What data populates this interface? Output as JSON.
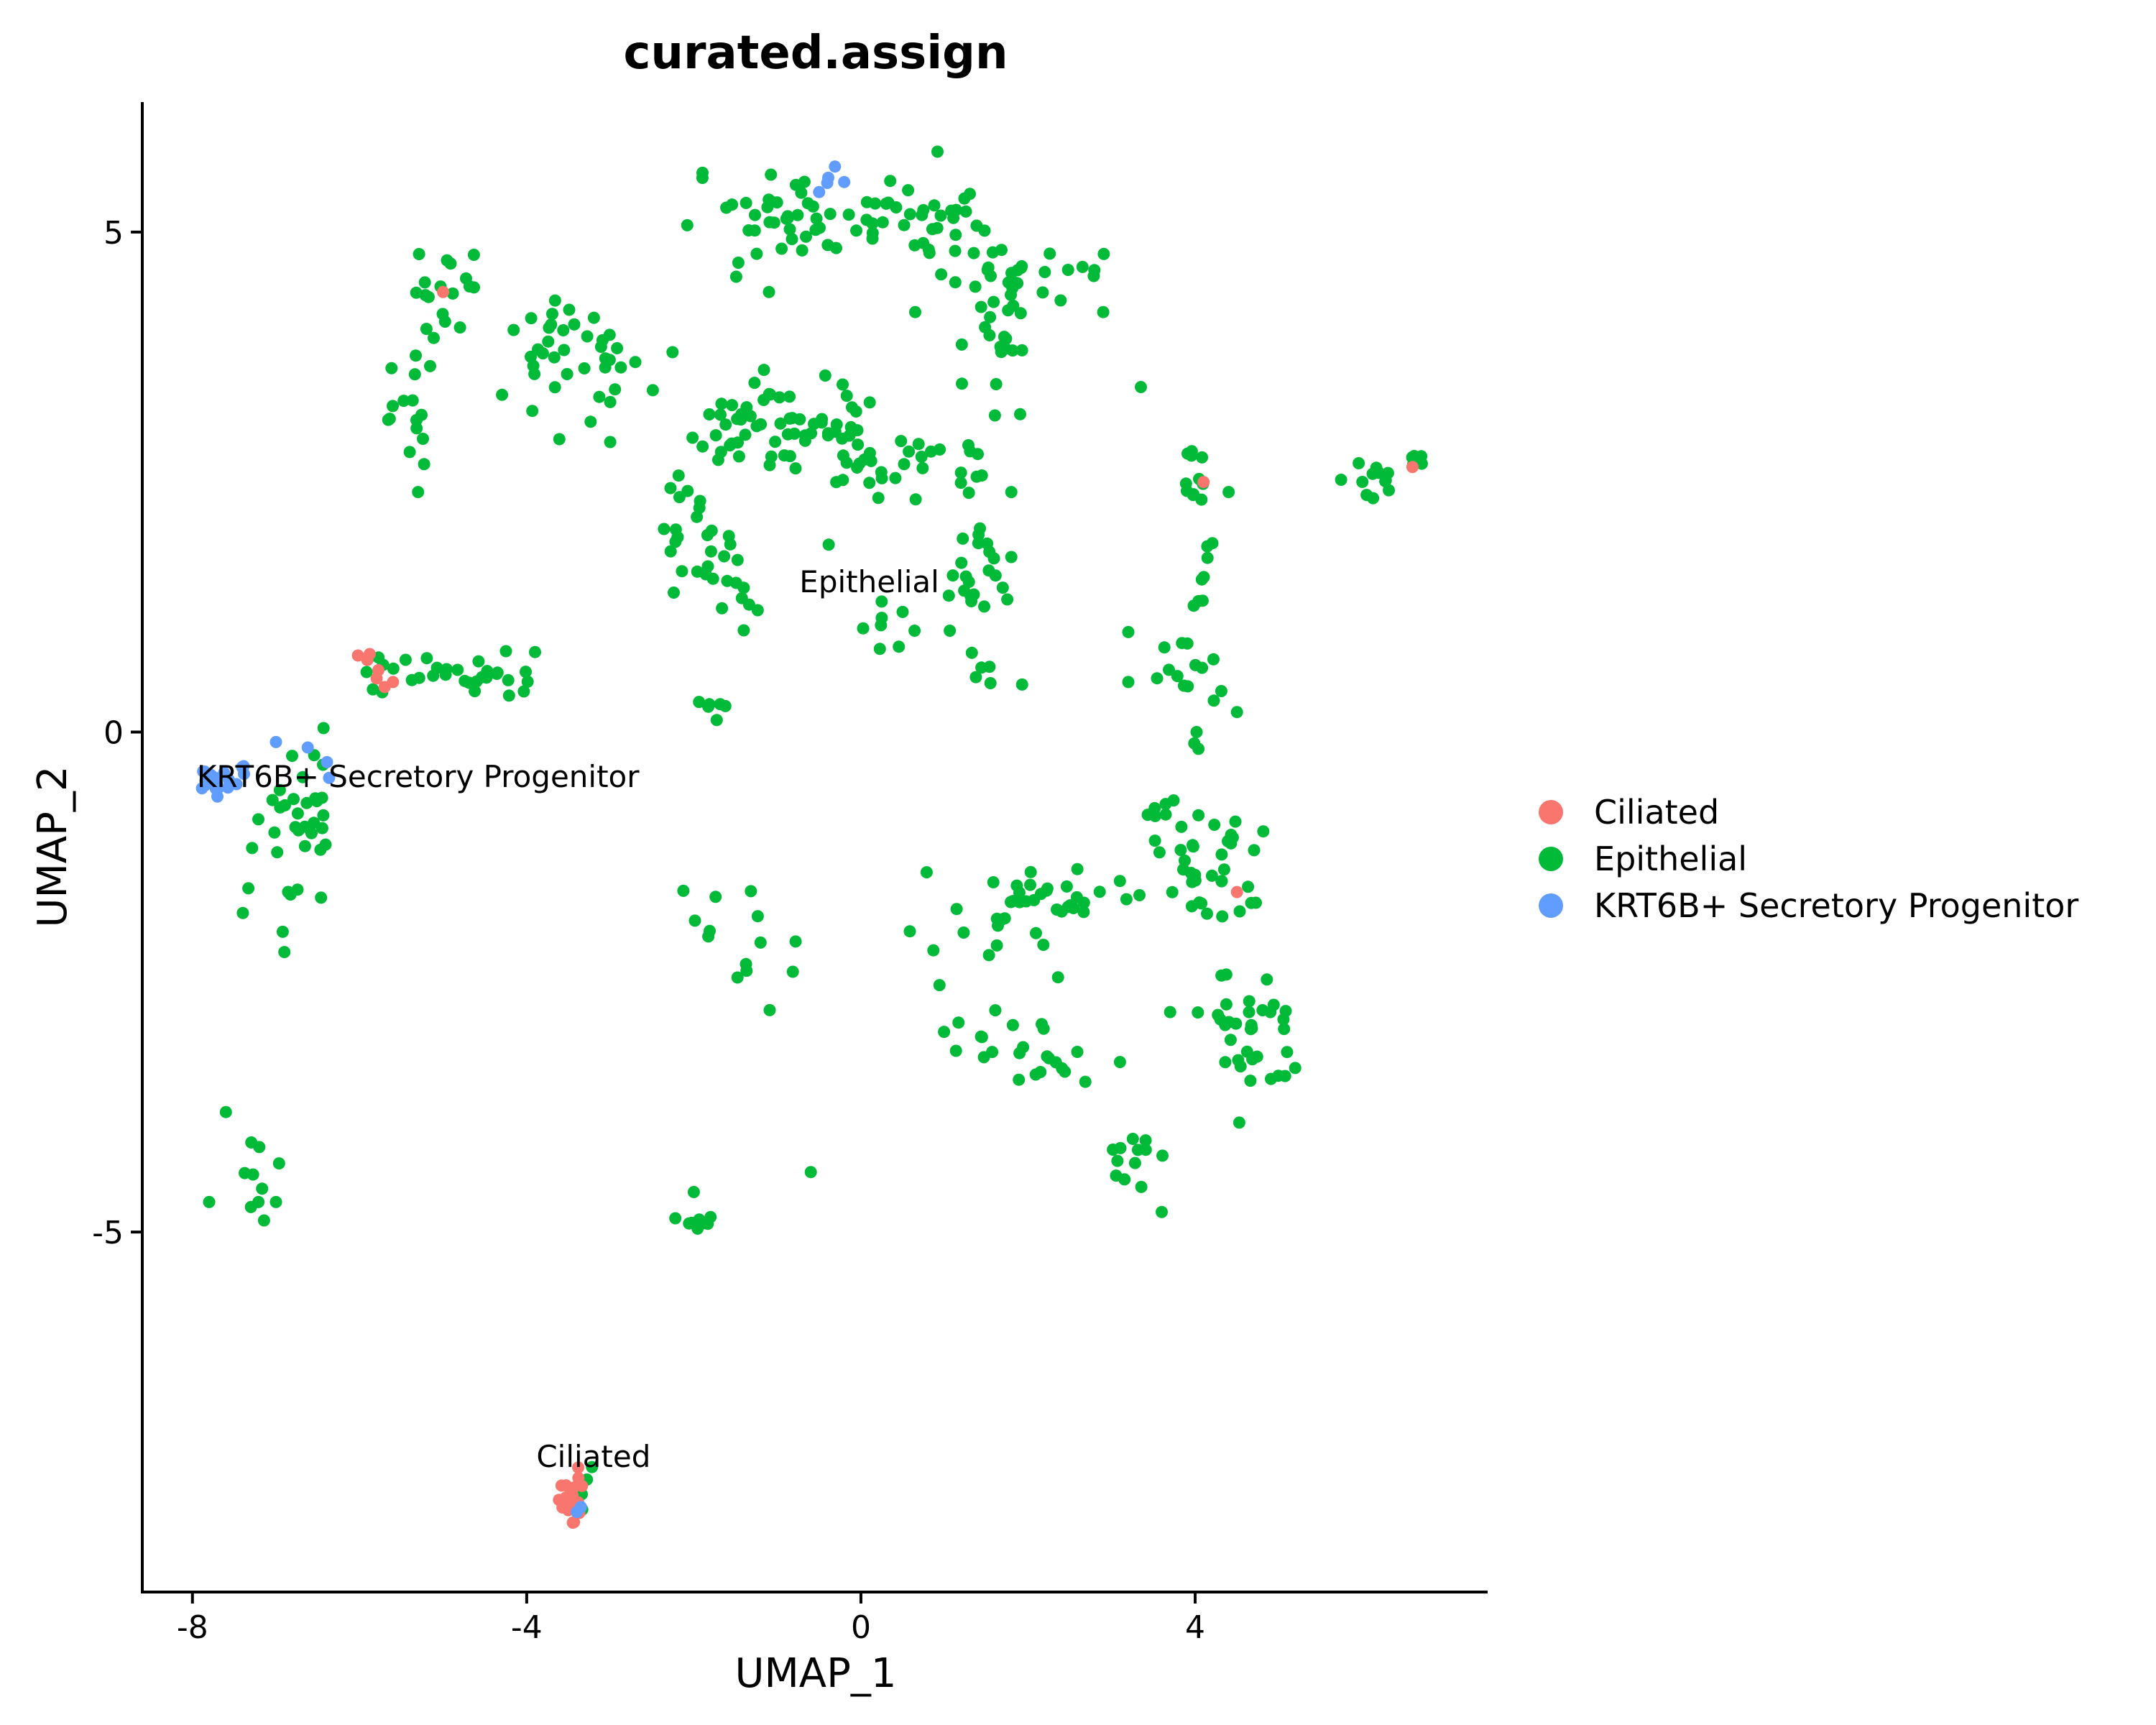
{
  "chart_data": {
    "type": "scatter",
    "title": "curated.assign",
    "xlabel": "UMAP_1",
    "ylabel": "UMAP_2",
    "xlim": [
      -8.6,
      7.5
    ],
    "ylim": [
      -8.6,
      6.3
    ],
    "x_ticks": [
      {
        "value": -8,
        "label": "-8"
      },
      {
        "value": -4,
        "label": "-4"
      },
      {
        "value": 0,
        "label": "0"
      },
      {
        "value": 4,
        "label": "4"
      }
    ],
    "y_ticks": [
      {
        "value": 5,
        "label": "5"
      },
      {
        "value": 0,
        "label": "0"
      },
      {
        "value": -5,
        "label": "-5"
      }
    ],
    "grid": false,
    "legend_position": "right",
    "series": [
      {
        "name": "Ciliated",
        "color": "#F8766D"
      },
      {
        "name": "Epithelial",
        "color": "#00BA38"
      },
      {
        "name": "KRT6B+ Secretory Progenitor",
        "color": "#619CFF"
      }
    ],
    "cluster_labels": [
      {
        "text": "Epithelial",
        "x": 0.1,
        "y": 1.5
      },
      {
        "text": "KRT6B+ Secretory Progenitor",
        "x": -5.3,
        "y": -0.45
      },
      {
        "text": "Ciliated",
        "x": -3.2,
        "y": -7.25
      }
    ],
    "groups": [
      {
        "series": 1,
        "cx": -3.4,
        "cy": 3.8,
        "sx": 0.5,
        "sy": 0.35,
        "n": 38
      },
      {
        "series": 1,
        "cx": -5.1,
        "cy": 4.3,
        "sx": 0.3,
        "sy": 0.35,
        "n": 18
      },
      {
        "series": 1,
        "cx": -5.4,
        "cy": 3.2,
        "sx": 0.2,
        "sy": 0.3,
        "n": 14
      },
      {
        "series": 1,
        "cx": -4.6,
        "cy": 0.55,
        "sx": 0.5,
        "sy": 0.15,
        "n": 26
      },
      {
        "series": 1,
        "cx": -5.8,
        "cy": 0.6,
        "sx": 0.15,
        "sy": 0.2,
        "n": 6
      },
      {
        "series": 1,
        "cx": -6.6,
        "cy": -0.9,
        "sx": 0.35,
        "sy": 0.45,
        "n": 28
      },
      {
        "series": 1,
        "cx": -6.9,
        "cy": -1.6,
        "sx": 0.3,
        "sy": 0.3,
        "n": 8
      },
      {
        "series": 1,
        "cx": -7.2,
        "cy": -4.5,
        "sx": 0.3,
        "sy": 0.3,
        "n": 7
      },
      {
        "series": 1,
        "cx": -1.0,
        "cy": 5.2,
        "sx": 0.6,
        "sy": 0.3,
        "n": 38
      },
      {
        "series": 1,
        "cx": 0.6,
        "cy": 5.1,
        "sx": 0.6,
        "sy": 0.25,
        "n": 38
      },
      {
        "series": 1,
        "cx": 1.8,
        "cy": 4.2,
        "sx": 0.35,
        "sy": 0.5,
        "n": 40
      },
      {
        "series": 1,
        "cx": 2.6,
        "cy": 4.7,
        "sx": 0.2,
        "sy": 0.15,
        "n": 6
      },
      {
        "series": 1,
        "cx": -0.9,
        "cy": 3.1,
        "sx": 0.7,
        "sy": 0.3,
        "n": 55
      },
      {
        "series": 1,
        "cx": 0.3,
        "cy": 2.6,
        "sx": 0.8,
        "sy": 0.4,
        "n": 40
      },
      {
        "series": 1,
        "cx": -2.0,
        "cy": 1.9,
        "sx": 0.25,
        "sy": 0.4,
        "n": 22
      },
      {
        "series": 1,
        "cx": -1.5,
        "cy": 1.3,
        "sx": 0.5,
        "sy": 0.3,
        "n": 12
      },
      {
        "series": 1,
        "cx": 1.5,
        "cy": 1.7,
        "sx": 0.3,
        "sy": 0.3,
        "n": 18
      },
      {
        "series": 1,
        "cx": 0.6,
        "cy": 1.2,
        "sx": 0.4,
        "sy": 0.3,
        "n": 12
      },
      {
        "series": 1,
        "cx": 1.4,
        "cy": 0.7,
        "sx": 0.3,
        "sy": 0.2,
        "n": 6
      },
      {
        "series": 1,
        "cx": -1.8,
        "cy": 0.3,
        "sx": 0.1,
        "sy": 0.15,
        "n": 6
      },
      {
        "series": 1,
        "cx": 4.0,
        "cy": 2.5,
        "sx": 0.1,
        "sy": 0.2,
        "n": 12
      },
      {
        "series": 1,
        "cx": 4.1,
        "cy": 1.5,
        "sx": 0.1,
        "sy": 0.4,
        "n": 8
      },
      {
        "series": 1,
        "cx": 4.0,
        "cy": 0.5,
        "sx": 0.3,
        "sy": 0.35,
        "n": 16
      },
      {
        "series": 1,
        "cx": 6.1,
        "cy": 2.5,
        "sx": 0.25,
        "sy": 0.15,
        "n": 12
      },
      {
        "series": 1,
        "cx": 6.6,
        "cy": 2.75,
        "sx": 0.08,
        "sy": 0.06,
        "n": 5
      },
      {
        "series": 1,
        "cx": 4.2,
        "cy": -1.4,
        "sx": 0.5,
        "sy": 0.35,
        "n": 38
      },
      {
        "series": 1,
        "cx": 3.6,
        "cy": -0.75,
        "sx": 0.15,
        "sy": 0.1,
        "n": 6
      },
      {
        "series": 1,
        "cx": 2.4,
        "cy": -1.6,
        "sx": 0.5,
        "sy": 0.15,
        "n": 22
      },
      {
        "series": 1,
        "cx": 1.5,
        "cy": -1.8,
        "sx": 0.5,
        "sy": 0.5,
        "n": 18
      },
      {
        "series": 1,
        "cx": 2.2,
        "cy": -3.3,
        "sx": 0.3,
        "sy": 0.2,
        "n": 14
      },
      {
        "series": 1,
        "cx": 1.5,
        "cy": -2.9,
        "sx": 0.3,
        "sy": 0.3,
        "n": 10
      },
      {
        "series": 1,
        "cx": 4.6,
        "cy": -3.0,
        "sx": 0.4,
        "sy": 0.5,
        "n": 34
      },
      {
        "series": 1,
        "cx": 3.4,
        "cy": -4.3,
        "sx": 0.25,
        "sy": 0.2,
        "n": 12
      },
      {
        "series": 1,
        "cx": -1.3,
        "cy": -2.1,
        "sx": 0.4,
        "sy": 0.4,
        "n": 14
      },
      {
        "series": 1,
        "cx": -2.0,
        "cy": -4.9,
        "sx": 0.15,
        "sy": 0.06,
        "n": 7
      },
      {
        "series": 1,
        "cx": -3.4,
        "cy": -7.6,
        "sx": 0.1,
        "sy": 0.2,
        "n": 8
      },
      {
        "series": 0,
        "cx": -3.45,
        "cy": -7.7,
        "sx": 0.08,
        "sy": 0.18,
        "n": 18
      },
      {
        "series": 0,
        "cx": -5.8,
        "cy": 0.65,
        "sx": 0.15,
        "sy": 0.15,
        "n": 5
      },
      {
        "series": 2,
        "cx": -7.75,
        "cy": -0.5,
        "sx": 0.12,
        "sy": 0.09,
        "n": 18
      },
      {
        "series": 2,
        "cx": -7.4,
        "cy": -0.4,
        "sx": 0.1,
        "sy": 0.08,
        "n": 5
      },
      {
        "series": 2,
        "cx": -6.5,
        "cy": -0.25,
        "sx": 0.12,
        "sy": 0.12,
        "n": 3
      },
      {
        "series": 2,
        "cx": -0.3,
        "cy": 5.5,
        "sx": 0.1,
        "sy": 0.1,
        "n": 3
      }
    ],
    "points": [
      {
        "series": 1,
        "x": -0.6,
        "y": -4.4
      },
      {
        "series": 1,
        "x": -6.9,
        "y": -2.2
      },
      {
        "series": 1,
        "x": -7.6,
        "y": -3.8
      },
      {
        "series": 1,
        "x": -7.8,
        "y": -4.7
      },
      {
        "series": 1,
        "x": -7.3,
        "y": -4.75
      },
      {
        "series": 1,
        "x": -7.0,
        "y": -4.7
      },
      {
        "series": 1,
        "x": -7.2,
        "y": -4.15
      },
      {
        "series": 1,
        "x": 3.35,
        "y": 3.45
      },
      {
        "series": 1,
        "x": 2.9,
        "y": 4.2
      },
      {
        "series": 1,
        "x": 0.65,
        "y": 4.2
      },
      {
        "series": 1,
        "x": -3.0,
        "y": 2.9
      },
      {
        "series": 1,
        "x": -3.0,
        "y": 3.3
      },
      {
        "series": 1,
        "x": -5.3,
        "y": 2.4
      },
      {
        "series": 1,
        "x": -5.4,
        "y": 2.8
      },
      {
        "series": 1,
        "x": -3.9,
        "y": 0.8
      },
      {
        "series": 1,
        "x": 3.2,
        "y": 1.0
      },
      {
        "series": 1,
        "x": 3.2,
        "y": 0.5
      },
      {
        "series": 1,
        "x": 4.4,
        "y": 2.4
      },
      {
        "series": 1,
        "x": 4.5,
        "y": 0.2
      },
      {
        "series": 1,
        "x": 3.1,
        "y": -3.3
      },
      {
        "series": 1,
        "x": 3.6,
        "y": -4.8
      },
      {
        "series": 1,
        "x": 3.7,
        "y": -2.8
      },
      {
        "series": 1,
        "x": -2.0,
        "y": -4.6
      },
      {
        "series": 1,
        "x": -1.8,
        "y": -4.85
      },
      {
        "series": 1,
        "x": 5.1,
        "y": -3.2
      },
      {
        "series": 1,
        "x": 2.2,
        "y": 4.6
      },
      {
        "series": 1,
        "x": -1.1,
        "y": 4.4
      },
      {
        "series": 1,
        "x": 1.8,
        "y": 1.75
      },
      {
        "series": 1,
        "x": 1.8,
        "y": 2.4
      },
      {
        "series": 0,
        "x": -5.0,
        "y": 4.4
      },
      {
        "series": 0,
        "x": 4.1,
        "y": 2.5
      },
      {
        "series": 0,
        "x": 6.6,
        "y": 2.65
      },
      {
        "series": 0,
        "x": 4.5,
        "y": -1.6
      },
      {
        "series": 0,
        "x": -5.6,
        "y": 0.5
      },
      {
        "series": 0,
        "x": -5.7,
        "y": 0.45
      },
      {
        "series": 2,
        "x": -7.0,
        "y": -0.1
      },
      {
        "series": 2,
        "x": -0.5,
        "y": 5.4
      },
      {
        "series": 2,
        "x": -0.2,
        "y": 5.5
      },
      {
        "series": 2,
        "x": -3.4,
        "y": -7.8
      },
      {
        "series": 2,
        "x": -3.35,
        "y": -7.75
      }
    ]
  }
}
